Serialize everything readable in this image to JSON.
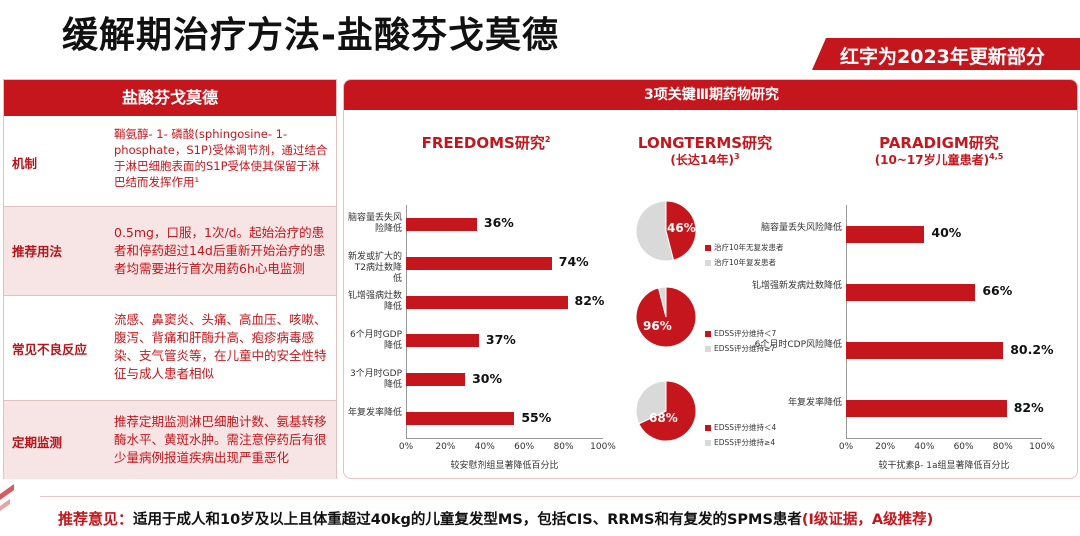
{
  "title": "缓解期治疗方法-盐酸芬戈莫德",
  "tag": "红字为2023年更新部分",
  "left_table": {
    "header": "盐酸芬戈莫德",
    "rows": [
      {
        "label": "机制",
        "text": "鞘氨醇- 1- 磷酸(sphingosine- 1- phosphate，S1P)受体调节剂，通过结合于淋巴细胞表面的S1P受体使其保留于淋巴结而发挥作用¹"
      },
      {
        "label": "推荐用法",
        "text": "0.5mg，口服，1次/d。起始治疗的患者和停药超过14d后重新开始治疗的患者均需要进行首次用药6h心电监测"
      },
      {
        "label": "常见不良反应",
        "text": "流感、鼻窦炎、头痛、高血压、咳嗽、腹泻、背痛和肝酶升高、疱疹病毒感染、支气管炎等，在儿童中的安全性特征与成人患者相似"
      },
      {
        "label": "定期监测",
        "text": "推荐定期监测淋巴细胞计数、氨基转移酶水平、黄斑水肿。需注意停药后有很少量病例报道疾病出现严重恶化"
      }
    ]
  },
  "right_panel": {
    "header": "3项关键Ⅲ期药物研究",
    "freedoms": {
      "title": "FREEDOMS研究",
      "sup": "2"
    },
    "longterms": {
      "title": "LONGTERMS研究",
      "subtitle": "(长达14年)",
      "sup": "3"
    },
    "paradigm": {
      "title": "PARADIGM研究",
      "subtitle": "(10~17岁儿童患者)",
      "sup": "4,5"
    }
  },
  "chart_data": [
    {
      "type": "bar",
      "orientation": "horizontal",
      "categories": [
        "脑容量丢失风险降低",
        "新发或扩大的T2病灶数降低",
        "钆增强病灶数降低",
        "6个月时GDP降低",
        "3个月时GDP降低",
        "年复发率降低"
      ],
      "values": [
        36,
        74,
        82,
        37,
        30,
        55
      ],
      "value_labels": [
        "36%",
        "74%",
        "82%",
        "37%",
        "30%",
        "55%"
      ],
      "xticks": [
        "0%",
        "20%",
        "40%",
        "60%",
        "80%",
        "100%"
      ],
      "xlim": [
        0,
        100
      ],
      "xlabel": "较安慰剂组显著降低百分比"
    },
    {
      "type": "pie",
      "slices": [
        {
          "name": "治疗10年无复发患者",
          "value": 46,
          "color": "#c4161c"
        },
        {
          "name": "治疗10年复发患者",
          "value": 54,
          "color": "#d9d9d9"
        }
      ],
      "label": "46%"
    },
    {
      "type": "pie",
      "slices": [
        {
          "name": "EDSS评分维持＜7",
          "value": 96,
          "color": "#c4161c"
        },
        {
          "name": "EDSS评分维持≥7",
          "value": 4,
          "color": "#d9d9d9"
        }
      ],
      "label": "96%"
    },
    {
      "type": "pie",
      "slices": [
        {
          "name": "EDSS评分维持＜4",
          "value": 68,
          "color": "#c4161c"
        },
        {
          "name": "EDSS评分维持≥4",
          "value": 32,
          "color": "#d9d9d9"
        }
      ],
      "label": "68%"
    },
    {
      "type": "bar",
      "orientation": "horizontal",
      "categories": [
        "脑容量丢失风险降低",
        "钆增强新发病灶数降低",
        "6个月时CDP风险降低",
        "年复发率降低"
      ],
      "values": [
        40,
        66,
        80.2,
        82
      ],
      "value_labels": [
        "40%",
        "66%",
        "80.2%",
        "82%"
      ],
      "xticks": [
        "0%",
        "20%",
        "40%",
        "60%",
        "80%",
        "100%"
      ],
      "xlim": [
        0,
        100
      ],
      "xlabel": "较干扰素β- 1a组显著降低百分比"
    }
  ],
  "recommendation": {
    "label": "推荐意见：",
    "text": "适用于成人和10岁及以上且体重超过40kg的儿童复发型MS，包括CIS、RRMS和有复发的SPMS患者",
    "evidence": "(Ⅰ级证据，A级推荐)"
  },
  "colors": {
    "accent": "#c4161c",
    "gray": "#d9d9d9"
  }
}
